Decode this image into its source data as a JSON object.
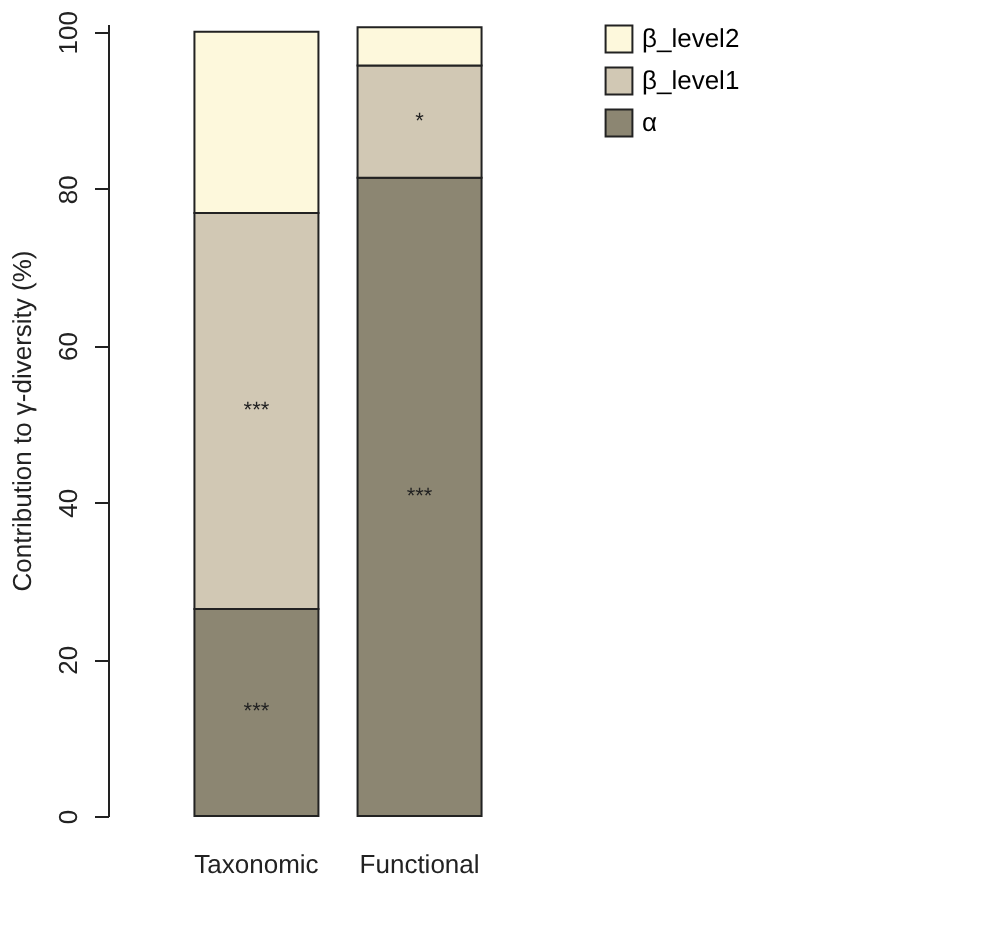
{
  "chart_data": {
    "type": "bar",
    "stacked": true,
    "ylabel": "Contribution to γ-diversity (%)",
    "categories": [
      "Taxonomic",
      "Functional"
    ],
    "series": [
      {
        "name": "α",
        "color": "#8c8672",
        "values": [
          26.4,
          81.4
        ],
        "value_labels": [
          "***",
          "***"
        ]
      },
      {
        "name": "β_level1",
        "color": "#d1c8b4",
        "values": [
          50.5,
          14.3
        ],
        "value_labels": [
          "***",
          "*"
        ]
      },
      {
        "name": "β_level2",
        "color": "#fdf8dc",
        "values": [
          23.1,
          4.9
        ]
      }
    ],
    "ylim": [
      0,
      101
    ],
    "yticks": [
      0,
      20,
      40,
      60,
      80,
      100
    ],
    "grid": false,
    "legend": "right"
  }
}
